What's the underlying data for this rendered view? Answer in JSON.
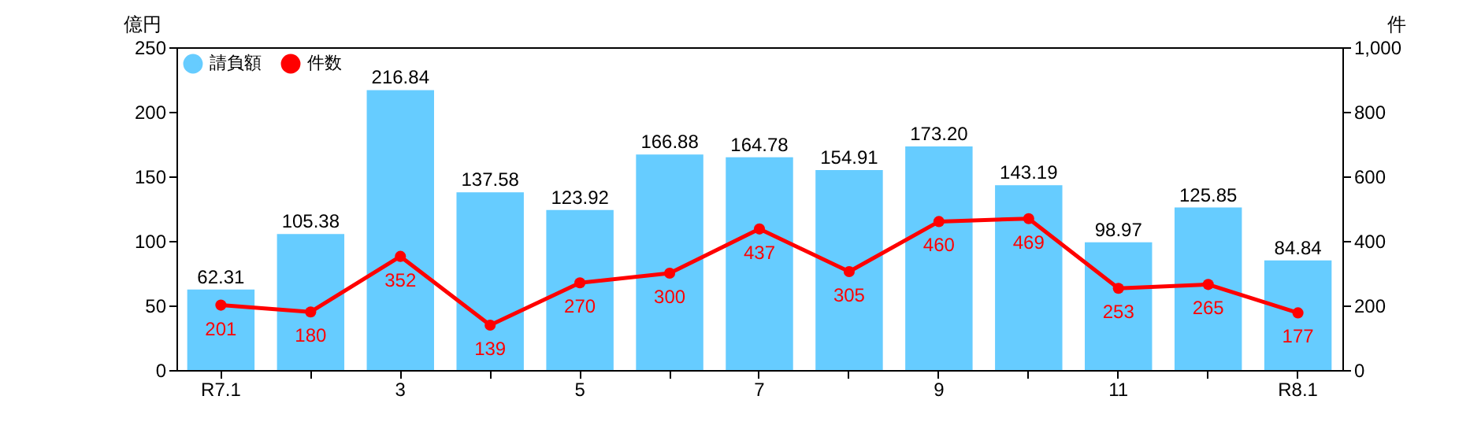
{
  "chart_data": {
    "type": "bar",
    "categories": [
      "R7.1",
      null,
      "3",
      null,
      "5",
      null,
      "7",
      null,
      "9",
      null,
      "11",
      null,
      "R8.1"
    ],
    "ylabel": "億円",
    "y2label": "件",
    "ylim": [
      0,
      250
    ],
    "yticks": [
      0,
      50,
      100,
      150,
      200,
      250
    ],
    "y2lim": [
      0,
      1000
    ],
    "y2ticks": [
      0,
      200,
      400,
      600,
      800,
      {
        "value": 1000,
        "label": "1,000"
      }
    ],
    "grid": false,
    "legend": "top left",
    "marker": "circle",
    "series": [
      {
        "name": "請負額",
        "color": "#66ccff",
        "values": [
          62.31,
          105.38,
          216.84,
          137.58,
          123.92,
          166.88,
          164.78,
          154.91,
          173.2,
          143.19,
          98.97,
          125.85,
          84.84
        ],
        "value_labels": [
          "62.31",
          "105.38",
          "216.84",
          "137.58",
          "123.92",
          "166.88",
          "164.78",
          "154.91",
          "173.20",
          "143.19",
          "98.97",
          "125.85",
          "84.84"
        ]
      },
      {
        "name": "件数",
        "type": "line",
        "axis": "y2",
        "color": "#ff0000",
        "values": [
          201,
          180,
          352,
          139,
          270,
          300,
          437,
          305,
          460,
          469,
          253,
          265,
          177
        ],
        "value_labels": [
          "201",
          "180",
          "352",
          "139",
          "270",
          "300",
          "437",
          "305",
          "460",
          "469",
          "253",
          "265",
          "177"
        ]
      }
    ]
  }
}
